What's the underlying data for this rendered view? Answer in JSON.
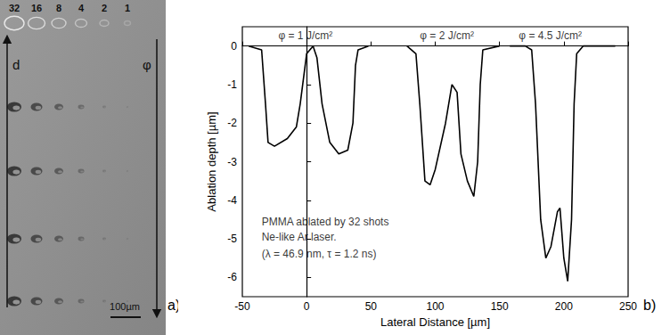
{
  "panel_a": {
    "label": "a)",
    "column_labels": [
      "32",
      "16",
      "8",
      "4",
      "2",
      "1"
    ],
    "left_arrow_label": "d",
    "right_arrow_label": "φ",
    "scale_bar": "100µm"
  },
  "chart_data": {
    "type": "line",
    "panel_label": "b)",
    "x_label": "Lateral Distance [µm]",
    "y_label": "Ablation depth [µm]",
    "xlim": [
      -50,
      250
    ],
    "xticks": [
      -50,
      0,
      50,
      100,
      150,
      200,
      250
    ],
    "ylim": [
      -6.5,
      0.5
    ],
    "yticks": [
      0,
      -1,
      -2,
      -3,
      -4,
      -5,
      -6
    ],
    "grid": false,
    "marker": "none",
    "series": [
      {
        "color": "#000000",
        "x": [
          -45,
          -35,
          -32,
          -30,
          -25,
          -15,
          -8,
          -5,
          0,
          5,
          8,
          12,
          18,
          25,
          32,
          36,
          38,
          40,
          48
        ],
        "values": [
          0,
          -0.1,
          -1.5,
          -2.5,
          -2.6,
          -2.4,
          -2.1,
          -1.5,
          -0.2,
          0,
          -0.3,
          -1.5,
          -2.5,
          -2.8,
          -2.7,
          -2.0,
          -0.5,
          -0.1,
          0
        ]
      },
      {
        "color": "#000000",
        "x": [
          78,
          85,
          88,
          92,
          96,
          100,
          108,
          113,
          117,
          120,
          125,
          130,
          133,
          135,
          137,
          150
        ],
        "values": [
          0,
          -0.2,
          -1.5,
          -3.5,
          -3.6,
          -3.2,
          -2.0,
          -1.0,
          -1.2,
          -2.8,
          -3.5,
          -3.9,
          -3.0,
          -1.0,
          -0.1,
          0
        ]
      },
      {
        "color": "#000000",
        "x": [
          158,
          170,
          175,
          178,
          182,
          186,
          190,
          195,
          197,
          200,
          203,
          206,
          208,
          210,
          215,
          240
        ],
        "values": [
          0,
          0,
          -0.1,
          -1.5,
          -4.5,
          -5.5,
          -5.2,
          -4.3,
          -4.2,
          -5.5,
          -6.1,
          -4.5,
          -1.5,
          -0.2,
          0,
          0
        ]
      }
    ],
    "annotations": [
      {
        "text": "φ = 1 J/cm²",
        "x": -22,
        "y": 0.27
      },
      {
        "text": "φ = 2 J/cm²",
        "x": 88,
        "y": 0.27
      },
      {
        "text": "φ = 4.5 J/cm²",
        "x": 165,
        "y": 0.27
      },
      {
        "text": "PMMA ablated by 32 shots",
        "x": -35,
        "y": -4.55
      },
      {
        "text": "Ne-like Ar laser.",
        "x": -35,
        "y": -4.95
      },
      {
        "text": "(λ = 46.9 nm, τ = 1.2 ns)",
        "x": -35,
        "y": -5.4
      }
    ]
  }
}
